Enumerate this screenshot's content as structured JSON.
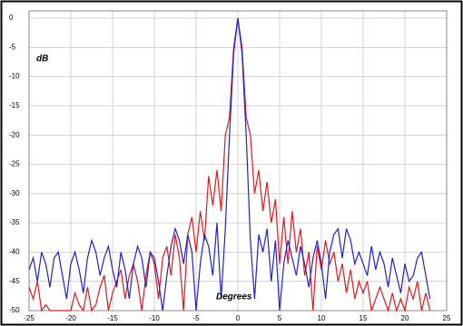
{
  "chart_data": {
    "type": "line",
    "annotations": [
      "dB",
      "Degrees"
    ],
    "x": [
      -25,
      -24.5,
      -24,
      -23.5,
      -23,
      -22.5,
      -22,
      -21.5,
      -21,
      -20.5,
      -20,
      -19.5,
      -19,
      -18.5,
      -18,
      -17.5,
      -17,
      -16.5,
      -16,
      -15.5,
      -15,
      -14.5,
      -14,
      -13.5,
      -13,
      -12.5,
      -12,
      -11.5,
      -11,
      -10.5,
      -10,
      -9.5,
      -9,
      -8.5,
      -8,
      -7.5,
      -7,
      -6.5,
      -6,
      -5.5,
      -5,
      -4.5,
      -4,
      -3.5,
      -3,
      -2.5,
      -2,
      -1.5,
      -1,
      -0.5,
      0,
      0.5,
      1,
      1.5,
      2,
      2.5,
      3,
      3.5,
      4,
      4.5,
      5,
      5.5,
      6,
      6.5,
      7,
      7.5,
      8,
      8.5,
      9,
      9.5,
      10,
      10.5,
      11,
      11.5,
      12,
      12.5,
      13,
      13.5,
      14,
      14.5,
      15,
      15.5,
      16,
      16.5,
      17,
      17.5,
      18,
      18.5,
      19,
      19.5,
      20,
      20.5,
      21,
      21.5,
      22,
      22.5,
      23
    ],
    "series": [
      {
        "color": "#e8161c",
        "values": [
          -46,
          -48,
          -45,
          -50,
          -49,
          -50,
          -50,
          -50,
          -50,
          -50,
          -50,
          -47,
          -49,
          -50,
          -46,
          -50,
          -49,
          -46,
          -44,
          -50,
          -47,
          -45,
          -43,
          -48,
          -44,
          -42,
          -45,
          -50,
          -44,
          -40,
          -42,
          -48,
          -41,
          -39,
          -44,
          -37,
          -41,
          -50,
          -37,
          -34,
          -40,
          -33,
          -38,
          -27,
          -32,
          -26,
          -33,
          -20,
          -17,
          -5,
          0,
          -5,
          -17,
          -20,
          -30,
          -26,
          -33,
          -28,
          -35,
          -31,
          -42,
          -34,
          -42,
          -33,
          -40,
          -36,
          -44,
          -40,
          -50,
          -39,
          -43,
          -38,
          -42,
          -40,
          -45,
          -42,
          -47,
          -43,
          -48,
          -45,
          -47,
          -45,
          -50,
          -48,
          -46,
          -48,
          -50,
          -47,
          -50,
          -48,
          -50,
          -46,
          -48,
          -45,
          -50,
          -47,
          -50
        ]
      },
      {
        "color": "#2020d0",
        "values": [
          -43,
          -41,
          -45,
          -40,
          -42,
          -46,
          -41,
          -40,
          -44,
          -48,
          -42,
          -40,
          -43,
          -47,
          -41,
          -38,
          -40,
          -44,
          -41,
          -39,
          -43,
          -46,
          -40,
          -43,
          -48,
          -42,
          -39,
          -41,
          -46,
          -40,
          -41,
          -45,
          -50,
          -44,
          -39,
          -36,
          -38,
          -42,
          -37,
          -40,
          -50,
          -42,
          -37,
          -39,
          -44,
          -35,
          -48,
          -36,
          -20,
          -6,
          0,
          -6,
          -20,
          -38,
          -48,
          -37,
          -40,
          -36,
          -45,
          -38,
          -50,
          -42,
          -38,
          -41,
          -44,
          -39,
          -42,
          -46,
          -41,
          -38,
          -42,
          -48,
          -40,
          -37,
          -36,
          -41,
          -36,
          -38,
          -42,
          -40,
          -42,
          -44,
          -39,
          -43,
          -40,
          -42,
          -46,
          -41,
          -44,
          -47,
          -42,
          -45,
          -44,
          -41,
          -40,
          -44,
          -48
        ]
      }
    ],
    "xlim": [
      -25,
      25
    ],
    "xticks": [
      -25,
      -20,
      -15,
      -10,
      -5,
      0,
      5,
      10,
      15,
      20,
      25
    ],
    "ylim": [
      -50,
      0
    ],
    "yticks": [
      0,
      -5,
      -10,
      -15,
      -20,
      -25,
      -30,
      -35,
      -40,
      -45,
      -50
    ],
    "grid": true
  }
}
